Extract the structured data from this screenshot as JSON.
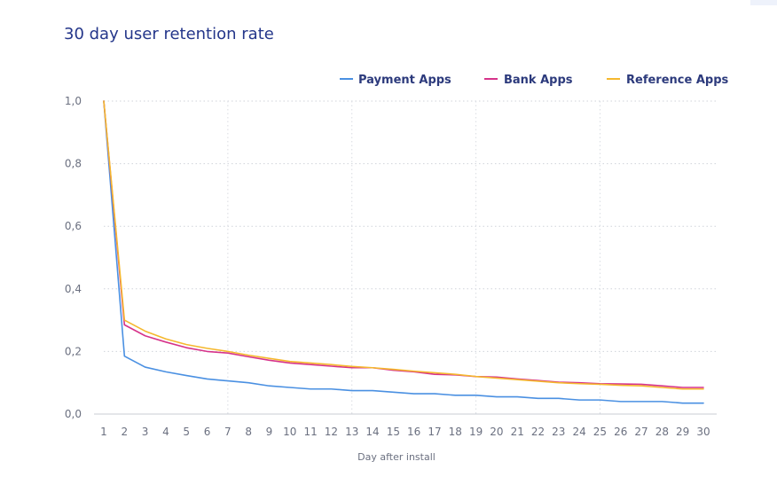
{
  "chart_data": {
    "type": "line",
    "title": "30 day user retention rate",
    "xlabel": "Day after install",
    "ylabel": "",
    "x": [
      1,
      2,
      3,
      4,
      5,
      6,
      7,
      8,
      9,
      10,
      11,
      12,
      13,
      14,
      15,
      16,
      17,
      18,
      19,
      20,
      21,
      22,
      23,
      24,
      25,
      26,
      27,
      28,
      29,
      30
    ],
    "xlim": [
      1,
      30
    ],
    "ylim": [
      0,
      1
    ],
    "yticks": [
      0.0,
      0.2,
      0.4,
      0.6,
      0.8,
      1.0
    ],
    "ytick_labels": [
      "0,0",
      "0,2",
      "0,4",
      "0,6",
      "0,8",
      "1,0"
    ],
    "xtick_labels": [
      "1",
      "2",
      "3",
      "4",
      "5",
      "6",
      "7",
      "8",
      "9",
      "10",
      "11",
      "12",
      "13",
      "14",
      "15",
      "16",
      "17",
      "18",
      "19",
      "20",
      "21",
      "22",
      "23",
      "24",
      "25",
      "26",
      "27",
      "28",
      "29",
      "30"
    ],
    "grid": true,
    "legend_position": "top-right",
    "series": [
      {
        "name": "Payment Apps",
        "color": "#4a90e2",
        "values": [
          1.0,
          0.185,
          0.15,
          0.135,
          0.123,
          0.112,
          0.106,
          0.1,
          0.09,
          0.085,
          0.08,
          0.08,
          0.075,
          0.075,
          0.07,
          0.065,
          0.065,
          0.06,
          0.06,
          0.055,
          0.055,
          0.05,
          0.05,
          0.045,
          0.045,
          0.04,
          0.04,
          0.04,
          0.035,
          0.035
        ]
      },
      {
        "name": "Bank Apps",
        "color": "#d6338a",
        "values": [
          1.0,
          0.285,
          0.25,
          0.23,
          0.212,
          0.2,
          0.195,
          0.183,
          0.172,
          0.163,
          0.158,
          0.153,
          0.148,
          0.148,
          0.14,
          0.135,
          0.127,
          0.125,
          0.12,
          0.118,
          0.112,
          0.107,
          0.102,
          0.1,
          0.097,
          0.096,
          0.095,
          0.09,
          0.085,
          0.085
        ]
      },
      {
        "name": "Reference Apps",
        "color": "#f5b82e",
        "values": [
          1.0,
          0.3,
          0.265,
          0.24,
          0.222,
          0.21,
          0.2,
          0.188,
          0.178,
          0.168,
          0.163,
          0.158,
          0.152,
          0.148,
          0.143,
          0.137,
          0.132,
          0.127,
          0.12,
          0.115,
          0.11,
          0.105,
          0.1,
          0.097,
          0.095,
          0.092,
          0.09,
          0.085,
          0.08,
          0.08
        ]
      }
    ]
  }
}
